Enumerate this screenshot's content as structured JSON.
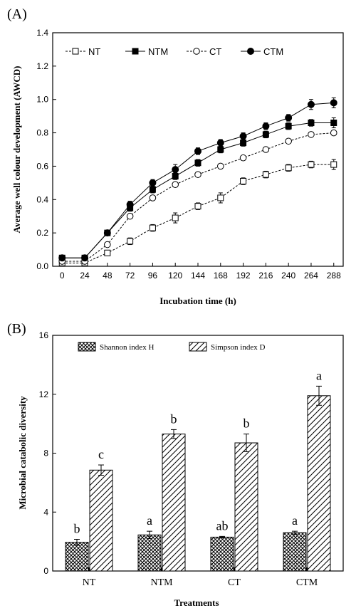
{
  "chart_data": [
    {
      "panel": "(A)",
      "type": "line",
      "xlabel": "Incubation time (h)",
      "ylabel": "Average well colour development (AWCD)",
      "x": [
        0,
        24,
        48,
        72,
        96,
        120,
        144,
        168,
        192,
        216,
        240,
        264,
        288
      ],
      "xlim": [
        -10,
        298
      ],
      "ylim": [
        0,
        1.4
      ],
      "yticks": [
        "0.0",
        "0.2",
        "0.4",
        "0.6",
        "0.8",
        "1.0",
        "1.2",
        "1.4"
      ],
      "xticks": [
        "0",
        "24",
        "48",
        "72",
        "96",
        "120",
        "144",
        "168",
        "192",
        "216",
        "240",
        "264",
        "288"
      ],
      "legend_position": "top-left",
      "series": [
        {
          "name": "NT",
          "marker": "open-square",
          "line": "dashed",
          "values": [
            0.02,
            0.02,
            0.08,
            0.15,
            0.23,
            0.29,
            0.36,
            0.41,
            0.51,
            0.55,
            0.59,
            0.61,
            0.61
          ],
          "errors": [
            0.01,
            0.01,
            0.01,
            0.02,
            0.02,
            0.03,
            0.02,
            0.03,
            0.02,
            0.02,
            0.02,
            0.02,
            0.03
          ]
        },
        {
          "name": "NTM",
          "marker": "filled-square",
          "line": "solid",
          "values": [
            0.05,
            0.05,
            0.2,
            0.35,
            0.46,
            0.54,
            0.62,
            0.7,
            0.74,
            0.79,
            0.84,
            0.86,
            0.86
          ],
          "errors": [
            0.01,
            0.01,
            0.01,
            0.02,
            0.02,
            0.02,
            0.02,
            0.02,
            0.02,
            0.02,
            0.02,
            0.02,
            0.03
          ]
        },
        {
          "name": "CT",
          "marker": "open-circle",
          "line": "dashed",
          "values": [
            0.03,
            0.03,
            0.13,
            0.3,
            0.41,
            0.49,
            0.55,
            0.6,
            0.65,
            0.7,
            0.75,
            0.79,
            0.8
          ],
          "errors": [
            0.01,
            0.01,
            0.01,
            0.01,
            0.01,
            0.01,
            0.01,
            0.01,
            0.01,
            0.01,
            0.01,
            0.01,
            0.01
          ]
        },
        {
          "name": "CTM",
          "marker": "filled-circle",
          "line": "solid",
          "values": [
            0.05,
            0.05,
            0.2,
            0.37,
            0.5,
            0.58,
            0.69,
            0.74,
            0.78,
            0.84,
            0.89,
            0.97,
            0.98
          ],
          "errors": [
            0.01,
            0.01,
            0.01,
            0.02,
            0.02,
            0.03,
            0.02,
            0.02,
            0.02,
            0.02,
            0.02,
            0.03,
            0.03
          ]
        }
      ]
    },
    {
      "panel": "(B)",
      "type": "bar",
      "xlabel": "Treatments",
      "ylabel": "Microbial catabolic diversity",
      "categories": [
        "NT",
        "NTM",
        "CT",
        "CTM"
      ],
      "ylim": [
        0,
        16
      ],
      "yticks": [
        "0",
        "4",
        "8",
        "12",
        "16"
      ],
      "legend_position": "top",
      "series": [
        {
          "name": "Shannon index H",
          "pattern": "crosshatch",
          "values": [
            1.95,
            2.45,
            2.3,
            2.6
          ],
          "errors": [
            0.2,
            0.25,
            0.05,
            0.1
          ],
          "letters": [
            "b",
            "a",
            "ab",
            "a"
          ]
        },
        {
          "name": "Simpson index D",
          "pattern": "diagonal",
          "values": [
            6.85,
            9.3,
            8.7,
            11.9
          ],
          "errors": [
            0.35,
            0.3,
            0.6,
            0.65
          ],
          "letters": [
            "c",
            "b",
            "b",
            "a"
          ]
        }
      ]
    }
  ]
}
